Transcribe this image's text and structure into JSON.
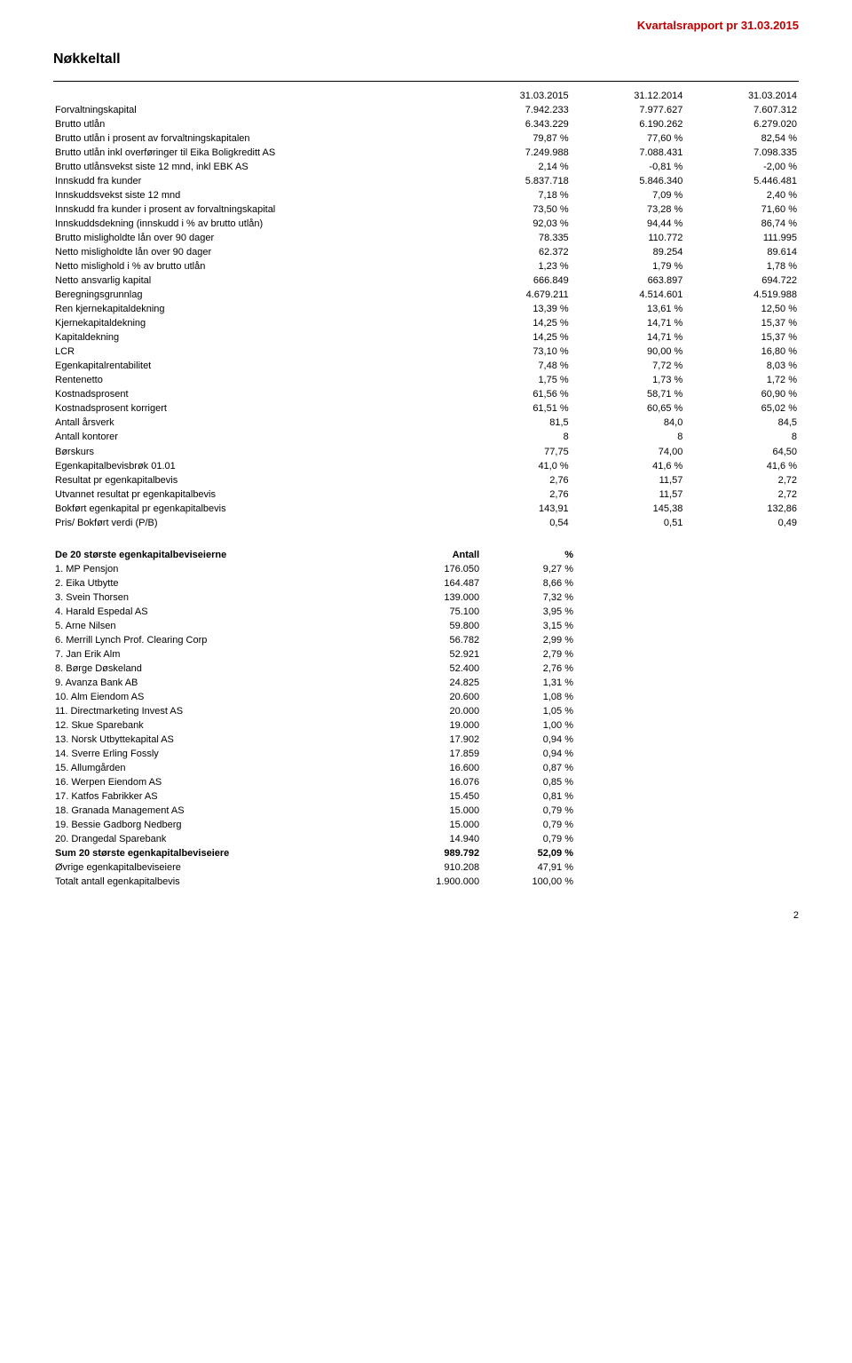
{
  "header": {
    "title": "Kvartalsrapport pr 31.03.2015"
  },
  "page_title": "Nøkkeltall",
  "columns": [
    "31.03.2015",
    "31.12.2014",
    "31.03.2014"
  ],
  "sections": [
    {
      "rows": [
        {
          "label": "Forvaltningskapital",
          "v": [
            "7.942.233",
            "7.977.627",
            "7.607.312"
          ]
        }
      ]
    },
    {
      "rows": [
        {
          "label": "Brutto utlån",
          "v": [
            "6.343.229",
            "6.190.262",
            "6.279.020"
          ]
        },
        {
          "label": "Brutto utlån i prosent av forvaltningskapitalen",
          "v": [
            "79,87 %",
            "77,60 %",
            "82,54 %"
          ]
        },
        {
          "label": "Brutto utlån inkl overføringer til Eika Boligkreditt AS",
          "v": [
            "7.249.988",
            "7.088.431",
            "7.098.335"
          ]
        },
        {
          "label": "Brutto utlånsvekst siste 12 mnd, inkl EBK AS",
          "v": [
            "2,14 %",
            "-0,81 %",
            "-2,00 %"
          ]
        }
      ]
    },
    {
      "rows": [
        {
          "label": "Innskudd fra kunder",
          "v": [
            "5.837.718",
            "5.846.340",
            "5.446.481"
          ]
        },
        {
          "label": "Innskuddsvekst siste 12 mnd",
          "v": [
            "7,18 %",
            "7,09 %",
            "2,40 %"
          ]
        },
        {
          "label": "Innskudd fra kunder i prosent av forvaltningskapital",
          "v": [
            "73,50 %",
            "73,28 %",
            "71,60 %"
          ]
        },
        {
          "label": "Innskuddsdekning (innskudd i % av brutto utlån)",
          "v": [
            "92,03 %",
            "94,44 %",
            "86,74 %"
          ]
        }
      ]
    },
    {
      "rows": [
        {
          "label": "Brutto misligholdte lån over 90 dager",
          "v": [
            "78.335",
            "110.772",
            "111.995"
          ]
        },
        {
          "label": "Netto misligholdte lån over 90 dager",
          "v": [
            "62.372",
            "89.254",
            "89.614"
          ]
        },
        {
          "label": "Netto mislighold i % av brutto utlån",
          "v": [
            "1,23 %",
            "1,79 %",
            "1,78 %"
          ]
        }
      ]
    },
    {
      "rows": [
        {
          "label": "Netto ansvarlig kapital",
          "v": [
            "666.849",
            "663.897",
            "694.722"
          ]
        },
        {
          "label": "Beregningsgrunnlag",
          "v": [
            "4.679.211",
            "4.514.601",
            "4.519.988"
          ]
        },
        {
          "label": "Ren kjernekapitaldekning",
          "v": [
            "13,39 %",
            "13,61 %",
            "12,50 %"
          ]
        },
        {
          "label": "Kjernekapitaldekning",
          "v": [
            "14,25 %",
            "14,71 %",
            "15,37 %"
          ]
        },
        {
          "label": "Kapitaldekning",
          "v": [
            "14,25 %",
            "14,71 %",
            "15,37 %"
          ]
        }
      ]
    },
    {
      "rows": [
        {
          "label": "LCR",
          "v": [
            "73,10 %",
            "90,00 %",
            "16,80 %"
          ]
        }
      ]
    },
    {
      "rows": [
        {
          "label": "Egenkapitalrentabilitet",
          "v": [
            "7,48 %",
            "7,72 %",
            "8,03 %"
          ]
        }
      ]
    },
    {
      "rows": [
        {
          "label": "Rentenetto",
          "v": [
            "1,75 %",
            "1,73 %",
            "1,72 %"
          ]
        },
        {
          "label": "Kostnadsprosent",
          "v": [
            "61,56 %",
            "58,71 %",
            "60,90 %"
          ]
        },
        {
          "label": "Kostnadsprosent korrigert",
          "v": [
            "61,51 %",
            "60,65 %",
            "65,02 %"
          ]
        }
      ]
    },
    {
      "rows": [
        {
          "label": "Antall årsverk",
          "v": [
            "81,5",
            "84,0",
            "84,5"
          ]
        },
        {
          "label": "Antall kontorer",
          "v": [
            "8",
            "8",
            "8"
          ]
        }
      ]
    },
    {
      "rows": [
        {
          "label": "Børskurs",
          "v": [
            "77,75",
            "74,00",
            "64,50"
          ]
        },
        {
          "label": "Egenkapitalbevisbrøk 01.01",
          "v": [
            "41,0 %",
            "41,6 %",
            "41,6 %"
          ]
        },
        {
          "label": "Resultat pr egenkapitalbevis",
          "v": [
            "2,76",
            "11,57",
            "2,72"
          ]
        },
        {
          "label": "Utvannet resultat pr egenkapitalbevis",
          "v": [
            "2,76",
            "11,57",
            "2,72"
          ]
        },
        {
          "label": "Bokført egenkapital pr egenkapitalbevis",
          "v": [
            "143,91",
            "145,38",
            "132,86"
          ]
        },
        {
          "label": "Pris/ Bokført verdi (P/B)",
          "v": [
            "0,54",
            "0,51",
            "0,49"
          ]
        }
      ]
    }
  ],
  "owners": {
    "title": "De 20 største egenkapitalbeviseierne",
    "columns": [
      "Antall",
      "%"
    ],
    "rows": [
      {
        "label": "1. MP Pensjon",
        "a": "176.050",
        "p": "9,27 %"
      },
      {
        "label": "2. Eika Utbytte",
        "a": "164.487",
        "p": "8,66 %"
      },
      {
        "label": "3. Svein Thorsen",
        "a": "139.000",
        "p": "7,32 %"
      },
      {
        "label": "4. Harald Espedal AS",
        "a": "75.100",
        "p": "3,95 %"
      },
      {
        "label": "5. Arne Nilsen",
        "a": "59.800",
        "p": "3,15 %"
      },
      {
        "label": "6. Merrill Lynch Prof. Clearing Corp",
        "a": "56.782",
        "p": "2,99 %"
      },
      {
        "label": "7. Jan Erik Alm",
        "a": "52.921",
        "p": "2,79 %"
      },
      {
        "label": "8. Børge Døskeland",
        "a": "52.400",
        "p": "2,76 %"
      },
      {
        "label": "9. Avanza Bank AB",
        "a": "24.825",
        "p": "1,31 %"
      },
      {
        "label": "10. Alm Eiendom AS",
        "a": "20.600",
        "p": "1,08 %"
      },
      {
        "label": "11. Directmarketing Invest AS",
        "a": "20.000",
        "p": "1,05 %"
      },
      {
        "label": "12. Skue Sparebank",
        "a": "19.000",
        "p": "1,00 %"
      },
      {
        "label": "13. Norsk Utbyttekapital AS",
        "a": "17.902",
        "p": "0,94 %"
      },
      {
        "label": "14. Sverre Erling Fossly",
        "a": "17.859",
        "p": "0,94 %"
      },
      {
        "label": "15. Allumgården",
        "a": "16.600",
        "p": "0,87 %"
      },
      {
        "label": "16. Werpen Eiendom AS",
        "a": "16.076",
        "p": "0,85 %"
      },
      {
        "label": "17. Katfos Fabrikker AS",
        "a": "15.450",
        "p": "0,81 %"
      },
      {
        "label": "18. Granada Management AS",
        "a": "15.000",
        "p": "0,79 %"
      },
      {
        "label": "19. Bessie Gadborg Nedberg",
        "a": "15.000",
        "p": "0,79 %"
      },
      {
        "label": "20. Drangedal Sparebank",
        "a": "14.940",
        "p": "0,79 %"
      }
    ],
    "summary": [
      {
        "label": "Sum 20 største egenkapitalbeviseiere",
        "a": "989.792",
        "p": "52,09 %",
        "bold": true
      },
      {
        "label": "Øvrige egenkapitalbeviseiere",
        "a": "910.208",
        "p": "47,91 %"
      },
      {
        "label": "Totalt antall egenkapitalbevis",
        "a": "1.900.000",
        "p": "100,00 %"
      }
    ]
  },
  "page_number": "2"
}
